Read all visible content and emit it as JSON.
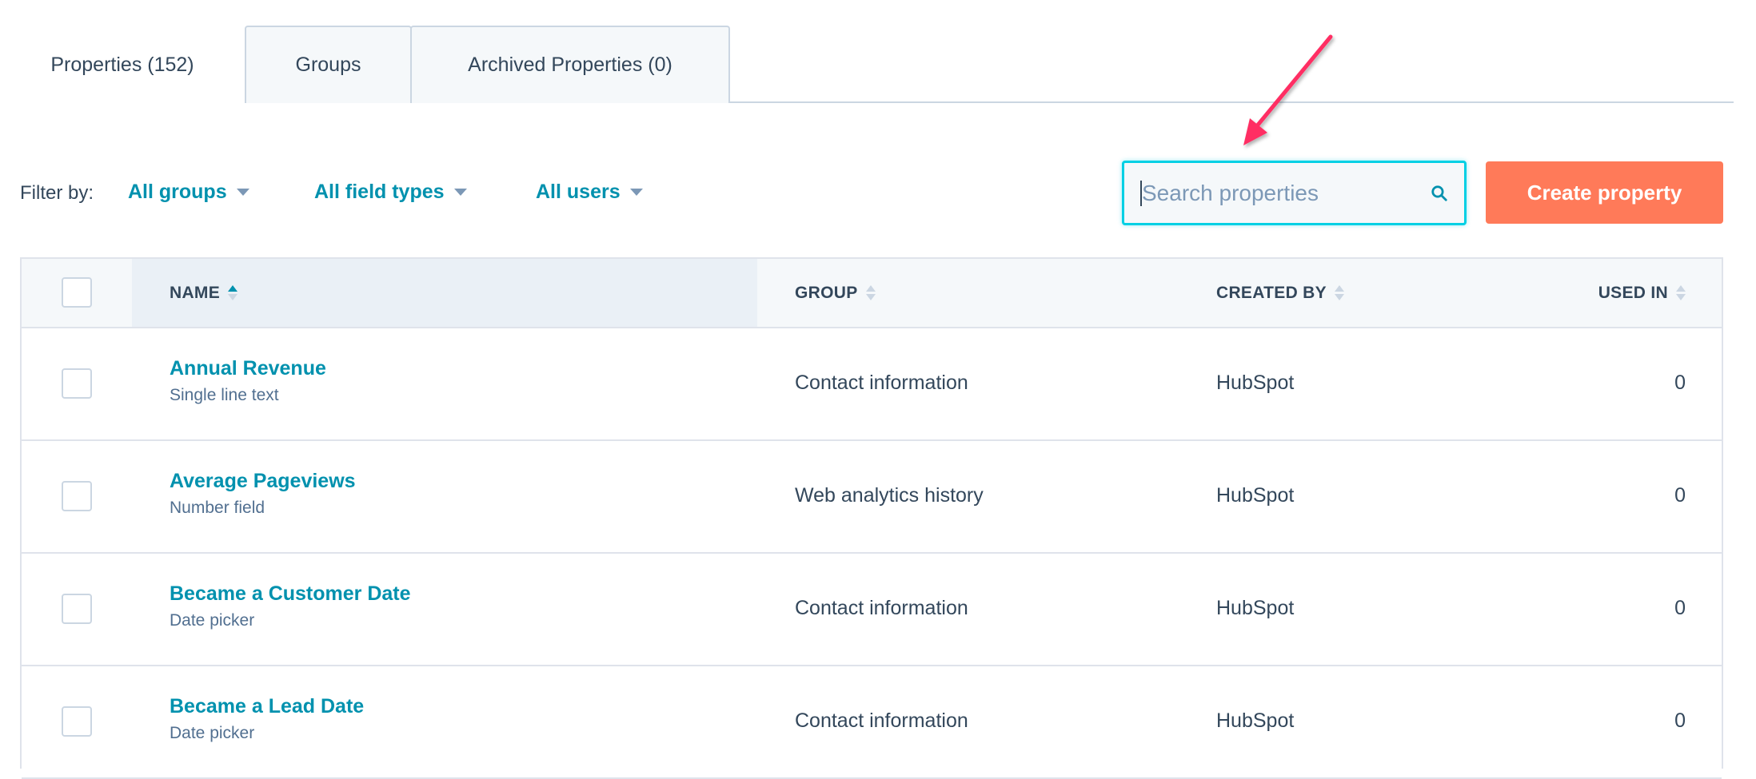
{
  "tabs": [
    {
      "label": "Properties (152)",
      "active": true
    },
    {
      "label": "Groups",
      "active": false
    },
    {
      "label": "Archived Properties (0)",
      "active": false
    }
  ],
  "filters": {
    "label": "Filter by:",
    "groups": "All groups",
    "field_types": "All field types",
    "users": "All users"
  },
  "search": {
    "placeholder": "Search properties",
    "icon": "search-icon"
  },
  "create_button": "Create property",
  "table": {
    "headers": {
      "name": "NAME",
      "group": "GROUP",
      "created_by": "CREATED BY",
      "used_in": "USED IN"
    },
    "sorted_by": "NAME ascending",
    "rows": [
      {
        "name": "Annual Revenue",
        "type": "Single line text",
        "group": "Contact information",
        "created_by": "HubSpot",
        "used_in": "0"
      },
      {
        "name": "Average Pageviews",
        "type": "Number field",
        "group": "Web analytics history",
        "created_by": "HubSpot",
        "used_in": "0"
      },
      {
        "name": "Became a Customer Date",
        "type": "Date picker",
        "group": "Contact information",
        "created_by": "HubSpot",
        "used_in": "0"
      },
      {
        "name": "Became a Lead Date",
        "type": "Date picker",
        "group": "Contact information",
        "created_by": "HubSpot",
        "used_in": "0"
      }
    ]
  },
  "colors": {
    "accent": "#0091ae",
    "button": "#ff7a59",
    "annotation_arrow": "#ff2e63",
    "search_focus": "#00d0e4"
  }
}
